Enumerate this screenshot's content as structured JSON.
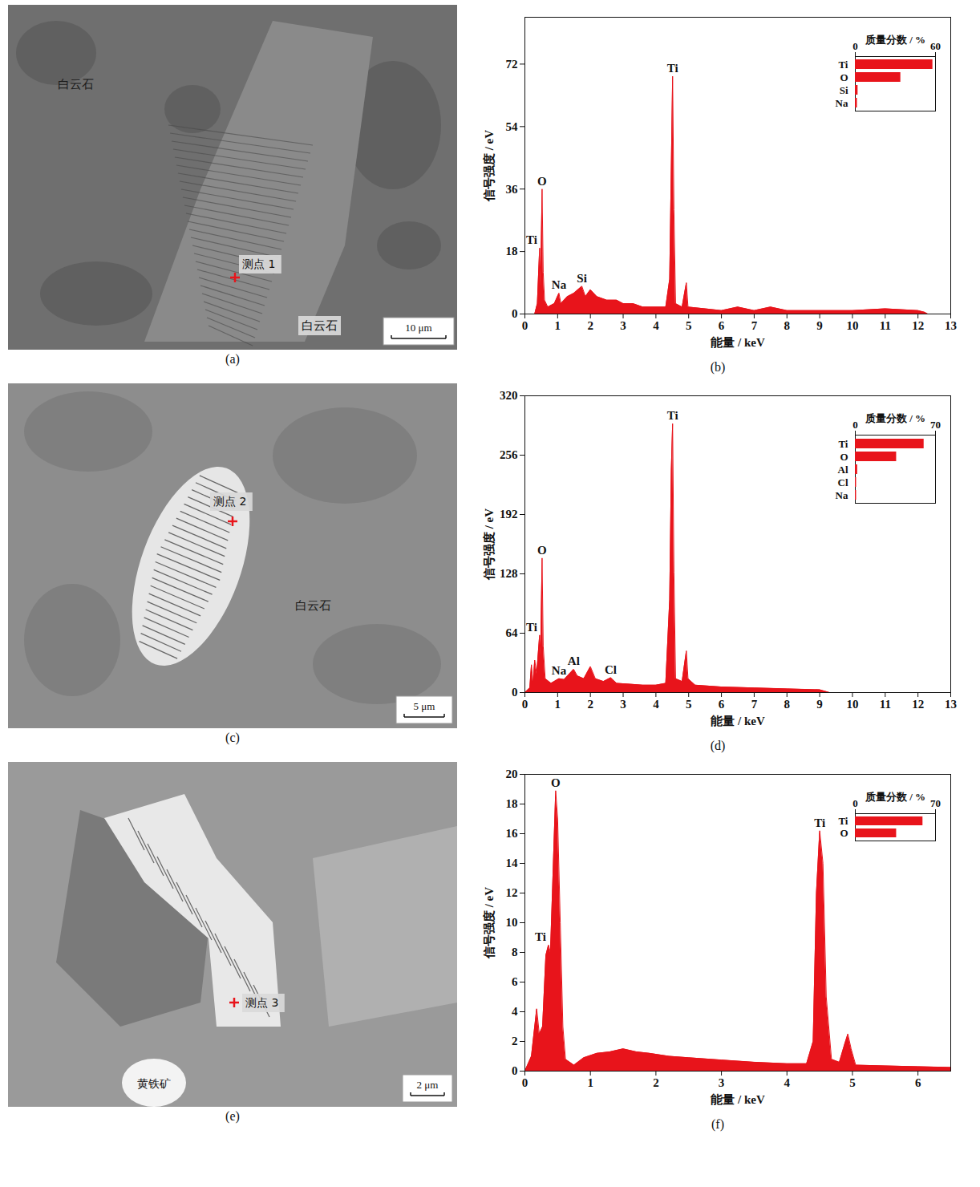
{
  "micrographs": [
    {
      "panel": "(a)",
      "mineral_labels": [
        "白云石",
        "白云石"
      ],
      "point_label": "测点 1",
      "scale_bar": "10 μm"
    },
    {
      "panel": "(c)",
      "mineral_labels": [
        "白云石"
      ],
      "point_label": "测点 2",
      "scale_bar": "5 μm"
    },
    {
      "panel": "(e)",
      "mineral_labels": [
        "黄铁矿"
      ],
      "point_label": "测点 3",
      "scale_bar": "2 μm"
    }
  ],
  "chart_data": [
    {
      "panel": "(b)",
      "type": "area",
      "color": "#e8141b",
      "xlabel": "能量 / keV",
      "ylabel": "信号强度 / eV",
      "x": [
        0,
        0.3,
        0.38,
        0.45,
        0.48,
        0.525,
        0.56,
        0.6,
        0.7,
        0.9,
        1.04,
        1.1,
        1.3,
        1.5,
        1.74,
        1.85,
        2.0,
        2.2,
        2.5,
        2.8,
        3.0,
        3.3,
        3.6,
        4.0,
        4.3,
        4.42,
        4.46,
        4.51,
        4.55,
        4.6,
        4.8,
        4.93,
        4.98,
        5.5,
        6.0,
        6.5,
        7.0,
        7.5,
        8.0,
        9.0,
        10.0,
        11.0,
        12.0,
        12.2,
        12.3
      ],
      "values": [
        0,
        0,
        3,
        19,
        8,
        36,
        12,
        4,
        2,
        3,
        6,
        3,
        5,
        6,
        8,
        5,
        7,
        5,
        4,
        4,
        3,
        3,
        2,
        2,
        2,
        10,
        36,
        68.5,
        30,
        3,
        2,
        9,
        2,
        1.5,
        1,
        2,
        1,
        2,
        1,
        1,
        1,
        1.5,
        1,
        0.5,
        0
      ],
      "xlim": [
        0,
        13
      ],
      "xticks": [
        0,
        1,
        2,
        3,
        4,
        5,
        6,
        7,
        8,
        9,
        10,
        11,
        12,
        13
      ],
      "ylim": [
        0,
        85.5
      ],
      "yticks": [
        0,
        18,
        36,
        54,
        72
      ],
      "annotations": [
        {
          "text": "Ti",
          "x": 0.45,
          "y": 19
        },
        {
          "text": "O",
          "x": 0.525,
          "y": 36
        },
        {
          "text": "Na",
          "x": 1.04,
          "y": 6
        },
        {
          "text": "Si",
          "x": 1.74,
          "y": 8
        },
        {
          "text": "Ti",
          "x": 4.51,
          "y": 68.5
        }
      ],
      "inset": {
        "type": "bar",
        "orientation": "horizontal",
        "title": "质量分数 / %",
        "categories": [
          "Ti",
          "O",
          "Si",
          "Na"
        ],
        "values": [
          58,
          34,
          2,
          1.5
        ],
        "xlim": [
          0,
          60
        ],
        "xticks": [
          0,
          60
        ],
        "color": "#e8141b"
      }
    },
    {
      "panel": "(d)",
      "type": "area",
      "color": "#e8141b",
      "xlabel": "能量 / keV",
      "ylabel": "信号强度 / eV",
      "x": [
        0,
        0.15,
        0.2,
        0.25,
        0.3,
        0.36,
        0.45,
        0.48,
        0.525,
        0.56,
        0.62,
        0.8,
        1.04,
        1.2,
        1.49,
        1.6,
        1.8,
        2.0,
        2.15,
        2.4,
        2.62,
        2.8,
        3.2,
        3.6,
        4.0,
        4.3,
        4.42,
        4.47,
        4.51,
        4.55,
        4.6,
        4.8,
        4.93,
        4.98,
        5.2,
        6.0,
        7.0,
        8.0,
        9.0,
        9.3
      ],
      "values": [
        0,
        5,
        30,
        10,
        35,
        20,
        62,
        40,
        145,
        50,
        15,
        10,
        15,
        14,
        25,
        18,
        15,
        28,
        15,
        12,
        16,
        10,
        9,
        8,
        8,
        10,
        100,
        240,
        290,
        130,
        15,
        12,
        45,
        15,
        8,
        6,
        5,
        4,
        3,
        0
      ],
      "xlim": [
        0,
        13
      ],
      "xticks": [
        0,
        1,
        2,
        3,
        4,
        5,
        6,
        7,
        8,
        9,
        10,
        11,
        12,
        13
      ],
      "ylim": [
        0,
        320
      ],
      "yticks": [
        0,
        64,
        128,
        192,
        256,
        320
      ],
      "annotations": [
        {
          "text": "Ti",
          "x": 0.45,
          "y": 62
        },
        {
          "text": "O",
          "x": 0.525,
          "y": 145
        },
        {
          "text": "Na",
          "x": 1.04,
          "y": 15
        },
        {
          "text": "Al",
          "x": 1.49,
          "y": 25
        },
        {
          "text": "Cl",
          "x": 2.62,
          "y": 16
        },
        {
          "text": "Ti",
          "x": 4.51,
          "y": 290
        }
      ],
      "inset": {
        "type": "bar",
        "orientation": "horizontal",
        "title": "质量分数 / %",
        "categories": [
          "Ti",
          "O",
          "Al",
          "Cl",
          "Na"
        ],
        "values": [
          60,
          36,
          2,
          1,
          1
        ],
        "xlim": [
          0,
          70
        ],
        "xticks": [
          0,
          70
        ],
        "color": "#e8141b"
      }
    },
    {
      "panel": "(f)",
      "type": "area",
      "color": "#e8141b",
      "xlabel": "能量 / keV",
      "ylabel": "信号强度 / eV",
      "x": [
        0,
        0.1,
        0.18,
        0.22,
        0.27,
        0.32,
        0.36,
        0.39,
        0.42,
        0.47,
        0.5,
        0.54,
        0.58,
        0.62,
        0.75,
        0.9,
        1.1,
        1.3,
        1.5,
        1.7,
        1.9,
        2.2,
        2.5,
        3.0,
        3.5,
        4.0,
        4.3,
        4.4,
        4.45,
        4.5,
        4.55,
        4.6,
        4.68,
        4.8,
        4.88,
        4.93,
        4.98,
        5.05,
        5.5,
        6.0,
        6.5
      ],
      "values": [
        0,
        1,
        4.2,
        2.5,
        3,
        7.8,
        8.5,
        8,
        12,
        18.9,
        17,
        10,
        3,
        0.8,
        0.4,
        0.9,
        1.2,
        1.3,
        1.5,
        1.3,
        1.2,
        1.0,
        0.9,
        0.75,
        0.6,
        0.5,
        0.5,
        2,
        12,
        16.2,
        14,
        5,
        0.8,
        0.6,
        1.8,
        2.5,
        1.5,
        0.4,
        0.35,
        0.3,
        0.25
      ],
      "xlim": [
        0,
        6.5
      ],
      "xticks": [
        0,
        1,
        2,
        3,
        4,
        5,
        6
      ],
      "ylim": [
        0,
        20
      ],
      "yticks": [
        0,
        2,
        4,
        6,
        8,
        10,
        12,
        14,
        16,
        18,
        20
      ],
      "annotations": [
        {
          "text": "Ti",
          "x": 0.36,
          "y": 8.5
        },
        {
          "text": "O",
          "x": 0.47,
          "y": 18.9
        },
        {
          "text": "Ti",
          "x": 4.5,
          "y": 16.2
        }
      ],
      "inset": {
        "type": "bar",
        "orientation": "horizontal",
        "title": "质量分数 / %",
        "categories": [
          "Ti",
          "O"
        ],
        "values": [
          59,
          36
        ],
        "xlim": [
          0,
          70
        ],
        "xticks": [
          0,
          70
        ],
        "color": "#e8141b"
      }
    }
  ]
}
